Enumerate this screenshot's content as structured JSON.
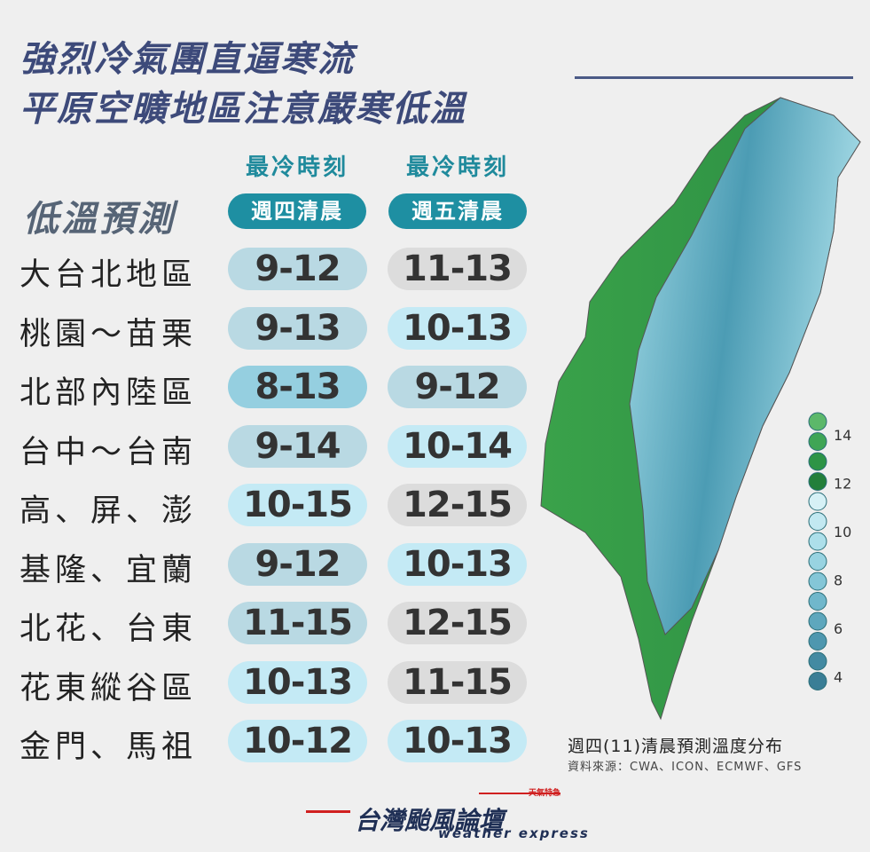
{
  "header": {
    "title_line1": "強烈冷氣團直逼寒流",
    "title_line2": "平原空曠地區注意嚴寒低溫"
  },
  "table": {
    "heading": "低溫預測",
    "columns": [
      {
        "top": "最冷時刻",
        "day": "週四清晨"
      },
      {
        "top": "最冷時刻",
        "day": "週五清晨"
      }
    ],
    "rows": [
      {
        "region": "大台北地區",
        "cells": [
          "9-12",
          "11-13"
        ],
        "colors": [
          "#b9d9e3",
          "#dcdcdc"
        ]
      },
      {
        "region": "桃園～苗栗",
        "cells": [
          "9-13",
          "10-13"
        ],
        "colors": [
          "#b9d9e3",
          "#c4eaf5"
        ]
      },
      {
        "region": "北部內陸區",
        "cells": [
          "8-13",
          "9-12"
        ],
        "colors": [
          "#95cfe0",
          "#b9d9e3"
        ]
      },
      {
        "region": "台中～台南",
        "cells": [
          "9-14",
          "10-14"
        ],
        "colors": [
          "#b9d9e3",
          "#c4eaf5"
        ]
      },
      {
        "region": "高、屏、澎",
        "cells": [
          "10-15",
          "12-15"
        ],
        "colors": [
          "#c4eaf5",
          "#dcdcdc"
        ]
      },
      {
        "region": "基隆、宜蘭",
        "cells": [
          "9-12",
          "10-13"
        ],
        "colors": [
          "#b9d9e3",
          "#c4eaf5"
        ]
      },
      {
        "region": "北花、台東",
        "cells": [
          "11-15",
          "12-15"
        ],
        "colors": [
          "#b9d9e3",
          "#dcdcdc"
        ]
      },
      {
        "region": "花東縱谷區",
        "cells": [
          "10-13",
          "11-15"
        ],
        "colors": [
          "#c4eaf5",
          "#dcdcdc"
        ]
      },
      {
        "region": "金門、馬祖",
        "cells": [
          "10-12",
          "10-13"
        ],
        "colors": [
          "#c4eaf5",
          "#c4eaf5"
        ]
      }
    ]
  },
  "map": {
    "legend_labels": [
      "14",
      "12",
      "10",
      "8",
      "6",
      "4"
    ],
    "caption": "週四(11)清晨預測溫度分布",
    "source": "資料來源：CWA、ICON、ECMWF、GFS"
  },
  "logo": {
    "name": "台灣颱風論壇",
    "subtitle": "weather express",
    "tag": "天氣特急"
  }
}
